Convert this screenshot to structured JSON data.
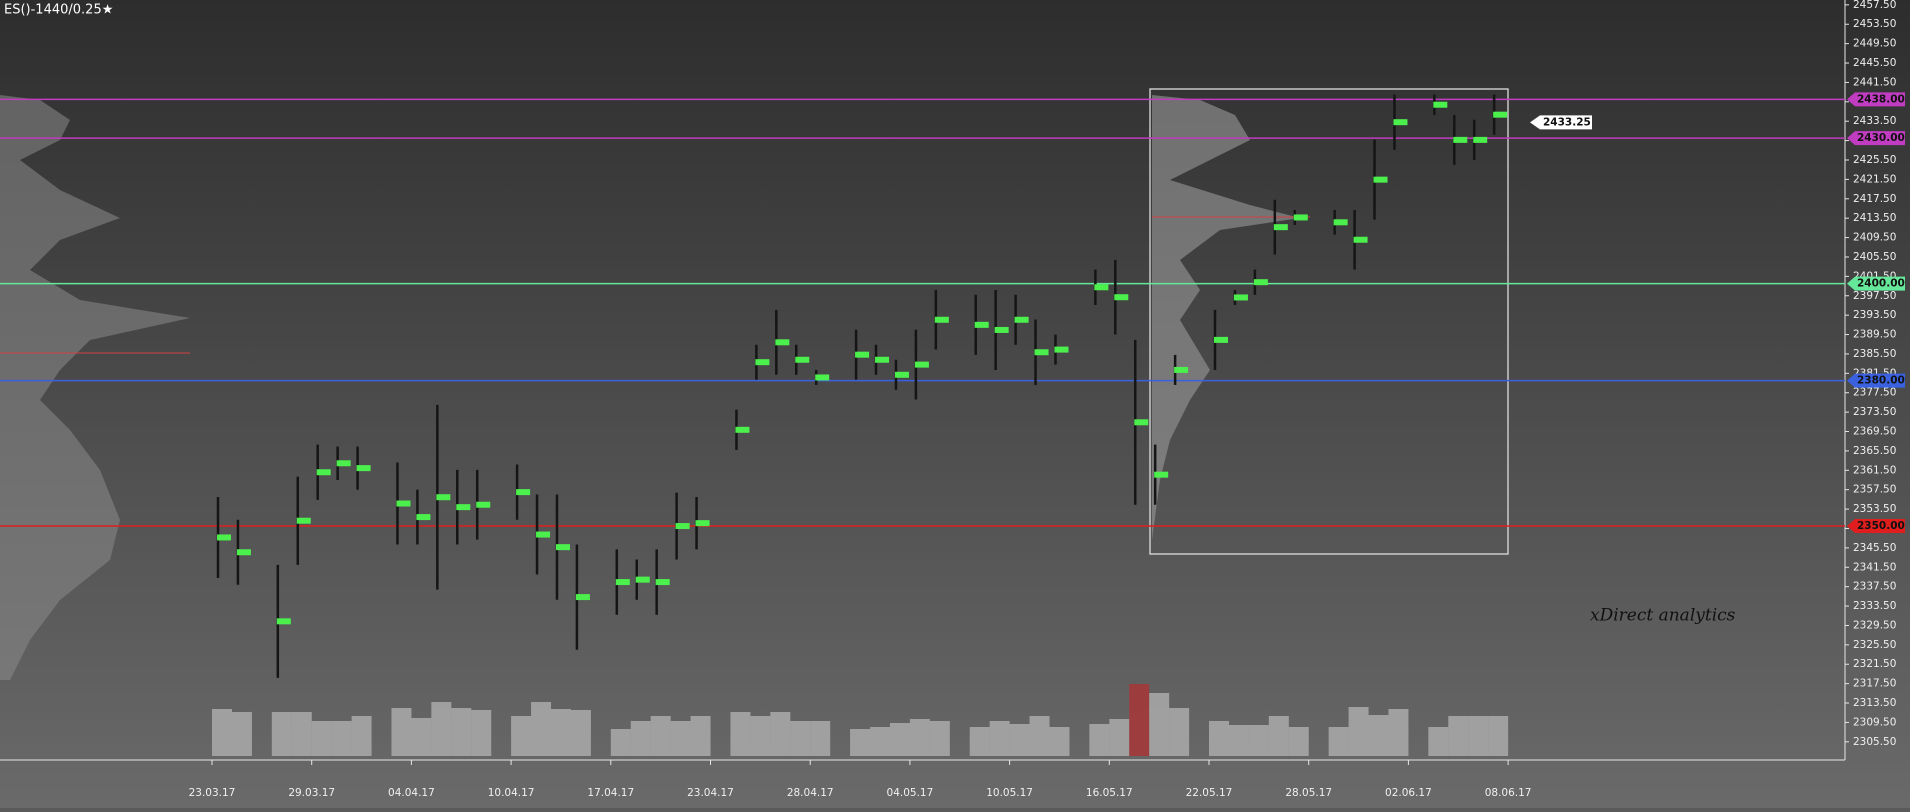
{
  "chart_data": {
    "type": "candle-range",
    "title": "ES()-1440/0.25★",
    "watermark": "xDirect analytics",
    "categories": [
      "23.03.17",
      null,
      null,
      null,
      null,
      "29.03.17",
      null,
      null,
      null,
      null,
      "04.04.17",
      null,
      null,
      null,
      null,
      "10.04.17",
      null,
      null,
      null,
      null,
      "17.04.17",
      null,
      null,
      null,
      null,
      "23.04.17",
      null,
      null,
      null,
      null,
      "28.04.17",
      null,
      null,
      null,
      null,
      "04.05.17",
      null,
      null,
      null,
      null,
      "10.05.17",
      null,
      null,
      null,
      null,
      "16.05.17",
      null,
      null,
      null,
      null,
      "22.05.17",
      null,
      null,
      null,
      null,
      "28.05.17",
      null,
      null,
      null,
      null,
      "02.06.17",
      null,
      null,
      null,
      null,
      "08.06.17"
    ],
    "high": [
      2356.0,
      2351.3,
      null,
      2342.0,
      2360.2,
      2366.8,
      2366.4,
      2366.4,
      null,
      2363.1,
      2357.5,
      2375.0,
      2361.6,
      2361.6,
      null,
      2362.7,
      2356.5,
      2356.5,
      2346.2,
      null,
      2345.2,
      2343.1,
      2345.2,
      2356.9,
      2356.0,
      null,
      2374.0,
      2387.4,
      2394.6,
      2387.4,
      2382.2,
      null,
      2390.5,
      2387.4,
      2384.3,
      2390.5,
      2398.7,
      null,
      2397.7,
      2398.7,
      2397.7,
      2392.6,
      2389.5,
      null,
      2402.9,
      2404.9,
      2388.4,
      2366.8,
      2385.3,
      null,
      2394.6,
      2398.7,
      2402.9,
      2417.3,
      2415.2,
      null,
      2415.2,
      2415.2,
      2429.7,
      2439.0,
      null,
      2439.0,
      2434.8,
      2433.8,
      2439.0,
      null
    ],
    "low": [
      2339.3,
      2337.9,
      null,
      2318.7,
      2342.0,
      2355.4,
      2359.5,
      2357.5,
      null,
      2346.2,
      2346.2,
      2336.9,
      2346.2,
      2347.2,
      null,
      2351.3,
      2340.0,
      2334.8,
      2324.5,
      null,
      2331.7,
      2334.8,
      2331.7,
      2343.1,
      2345.2,
      null,
      2365.7,
      2380.2,
      2381.2,
      2381.2,
      2379.1,
      null,
      2380.2,
      2381.2,
      2378.1,
      2376.1,
      2386.4,
      null,
      2385.3,
      2382.2,
      2387.4,
      2379.1,
      2383.3,
      null,
      2395.6,
      2389.5,
      2354.4,
      2354.4,
      2379.1,
      null,
      2382.2,
      2395.6,
      2397.7,
      2406.0,
      2412.1,
      null,
      2410.1,
      2402.9,
      2413.2,
      2427.6,
      null,
      2434.8,
      2424.5,
      2425.5,
      2430.7,
      null
    ],
    "range_color": "#151515",
    "marker_color": "#4cf04c",
    "volume": {
      "values": [
        47,
        44,
        null,
        44,
        44,
        35,
        35,
        40,
        null,
        48,
        38,
        54,
        48,
        46,
        null,
        40,
        54,
        47,
        46,
        null,
        27,
        35,
        40,
        35,
        40,
        null,
        44,
        40,
        44,
        35,
        35,
        null,
        27,
        29,
        33,
        37,
        35,
        null,
        29,
        35,
        32,
        40,
        29,
        null,
        32,
        37,
        72,
        63,
        48,
        null,
        35,
        31,
        31,
        40,
        29,
        null,
        29,
        49,
        41,
        47,
        null,
        29,
        40,
        40,
        40,
        null
      ],
      "color": "#b4b4b4",
      "highlight": {
        "index": 46,
        "color": "#b03030"
      }
    },
    "ylim": [
      2301.75,
      2458.5
    ],
    "yticks": [
      {
        "value": 2305.5,
        "label": "2305.50"
      },
      {
        "value": 2309.5,
        "label": "2309.50"
      },
      {
        "value": 2313.5,
        "label": "2313.50"
      },
      {
        "value": 2317.5,
        "label": "2317.50"
      },
      {
        "value": 2321.5,
        "label": "2321.50"
      },
      {
        "value": 2325.5,
        "label": "2325.50"
      },
      {
        "value": 2329.5,
        "label": "2329.50"
      },
      {
        "value": 2333.5,
        "label": "2333.50"
      },
      {
        "value": 2337.5,
        "label": "2337.50"
      },
      {
        "value": 2341.5,
        "label": "2341.50"
      },
      {
        "value": 2345.5,
        "label": "2345.50"
      },
      {
        "value": 2349.5,
        "label": "2349.50"
      },
      {
        "value": 2353.5,
        "label": "2353.50"
      },
      {
        "value": 2357.5,
        "label": "2357.50"
      },
      {
        "value": 2361.5,
        "label": "2361.50"
      },
      {
        "value": 2365.5,
        "label": "2365.50"
      },
      {
        "value": 2369.5,
        "label": "2369.50"
      },
      {
        "value": 2373.5,
        "label": "2373.50"
      },
      {
        "value": 2377.5,
        "label": "2377.50"
      },
      {
        "value": 2381.5,
        "label": "2381.50"
      },
      {
        "value": 2385.5,
        "label": "2385.50"
      },
      {
        "value": 2389.5,
        "label": "2389.50"
      },
      {
        "value": 2393.5,
        "label": "2393.50"
      },
      {
        "value": 2397.5,
        "label": "2397.50"
      },
      {
        "value": 2401.5,
        "label": "2401.50"
      },
      {
        "value": 2405.5,
        "label": "2405.50"
      },
      {
        "value": 2409.5,
        "label": "2409.50"
      },
      {
        "value": 2413.5,
        "label": "2413.50"
      },
      {
        "value": 2417.5,
        "label": "2417.50"
      },
      {
        "value": 2421.5,
        "label": "2421.50"
      },
      {
        "value": 2425.5,
        "label": "2425.50"
      },
      {
        "value": 2429.5,
        "label": "2429.50"
      },
      {
        "value": 2433.5,
        "label": "2433.50"
      },
      {
        "value": 2437.5,
        "label": "2437.50"
      },
      {
        "value": 2441.5,
        "label": "2441.50"
      },
      {
        "value": 2445.5,
        "label": "2445.50"
      },
      {
        "value": 2449.5,
        "label": "2449.50"
      },
      {
        "value": 2453.5,
        "label": "2453.50"
      },
      {
        "value": 2457.5,
        "label": "2457.50"
      }
    ],
    "levels": [
      {
        "value": 2438,
        "label": "2438.00",
        "color": "#c03cc0"
      },
      {
        "value": 2430,
        "label": "2430.00",
        "color": "#c03cc0"
      },
      {
        "value": 2400,
        "label": "2400.00",
        "color": "#66e89a"
      },
      {
        "value": 2380,
        "label": "2380.00",
        "color": "#3a62e0"
      },
      {
        "value": 2350,
        "label": "2350.00",
        "color": "#e01e1e"
      }
    ],
    "current_price": {
      "value": 2433.25,
      "label": "2433.25"
    }
  }
}
